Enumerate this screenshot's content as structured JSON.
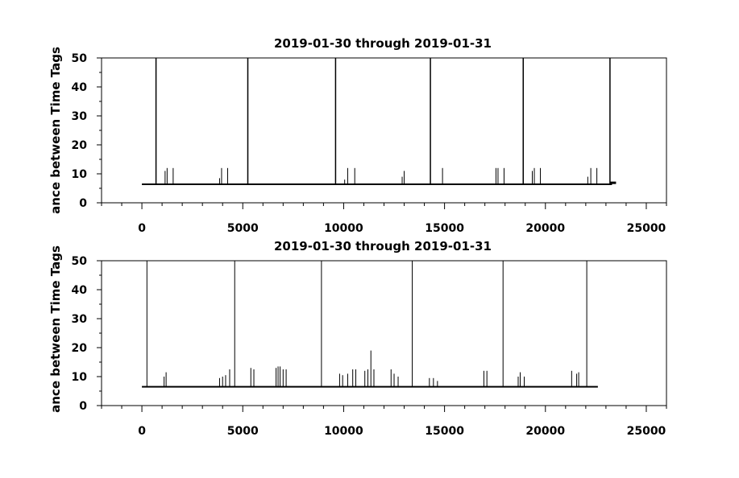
{
  "chart_data": [
    {
      "type": "line",
      "title": "2019-01-30 through 2019-01-31",
      "xlabel": "",
      "ylabel": "ance between Time Tags",
      "xlim": [
        -2000,
        26000
      ],
      "ylim": [
        0,
        50
      ],
      "xticks": [
        0,
        5000,
        10000,
        15000,
        20000,
        25000
      ],
      "yticks": [
        0,
        10,
        20,
        30,
        40,
        50
      ],
      "grid": false,
      "baseline": {
        "x_start": 0,
        "x_end": 23300,
        "y": 6.4
      },
      "tail": {
        "x_start": 23200,
        "x_end": 23500,
        "y": 6.9
      },
      "tall_spikes": [
        {
          "x": 700,
          "y": 50
        },
        {
          "x": 5250,
          "y": 50
        },
        {
          "x": 9600,
          "y": 50
        },
        {
          "x": 14300,
          "y": 50
        },
        {
          "x": 18900,
          "y": 50
        },
        {
          "x": 23200,
          "y": 50
        }
      ],
      "small_spikes": [
        {
          "x": 1150,
          "y": 11
        },
        {
          "x": 1250,
          "y": 12
        },
        {
          "x": 1550,
          "y": 12
        },
        {
          "x": 3850,
          "y": 8.5
        },
        {
          "x": 3950,
          "y": 12
        },
        {
          "x": 4250,
          "y": 12
        },
        {
          "x": 10050,
          "y": 8
        },
        {
          "x": 10200,
          "y": 12
        },
        {
          "x": 10550,
          "y": 12
        },
        {
          "x": 12900,
          "y": 9
        },
        {
          "x": 13000,
          "y": 11
        },
        {
          "x": 14900,
          "y": 12
        },
        {
          "x": 17550,
          "y": 12
        },
        {
          "x": 17650,
          "y": 12
        },
        {
          "x": 17950,
          "y": 12
        },
        {
          "x": 19350,
          "y": 11
        },
        {
          "x": 19450,
          "y": 12
        },
        {
          "x": 19750,
          "y": 12
        },
        {
          "x": 22100,
          "y": 9
        },
        {
          "x": 22250,
          "y": 12
        },
        {
          "x": 22550,
          "y": 12
        }
      ]
    },
    {
      "type": "line",
      "title": "2019-01-30 through 2019-01-31",
      "xlabel": "",
      "ylabel": "ance between Time Tags",
      "xlim": [
        -2000,
        26000
      ],
      "ylim": [
        0,
        50
      ],
      "xticks": [
        0,
        5000,
        10000,
        15000,
        20000,
        25000
      ],
      "yticks": [
        0,
        10,
        20,
        30,
        40,
        50
      ],
      "grid": false,
      "baseline": {
        "x_start": 0,
        "x_end": 22600,
        "y": 6.5
      },
      "tall_spikes": [
        {
          "x": 250,
          "y": 50
        },
        {
          "x": 4600,
          "y": 50
        },
        {
          "x": 8900,
          "y": 50
        },
        {
          "x": 13400,
          "y": 50
        },
        {
          "x": 17900,
          "y": 50
        },
        {
          "x": 22050,
          "y": 50
        }
      ],
      "small_spikes": [
        {
          "x": 1100,
          "y": 10
        },
        {
          "x": 1200,
          "y": 11.5
        },
        {
          "x": 3850,
          "y": 9.5
        },
        {
          "x": 4000,
          "y": 10
        },
        {
          "x": 4150,
          "y": 10.5
        },
        {
          "x": 4350,
          "y": 12.5
        },
        {
          "x": 5400,
          "y": 13
        },
        {
          "x": 5550,
          "y": 12.5
        },
        {
          "x": 6650,
          "y": 13
        },
        {
          "x": 6750,
          "y": 13.5
        },
        {
          "x": 6850,
          "y": 13.5
        },
        {
          "x": 7000,
          "y": 12.5
        },
        {
          "x": 7150,
          "y": 12.5
        },
        {
          "x": 9800,
          "y": 11
        },
        {
          "x": 9950,
          "y": 10.5
        },
        {
          "x": 10200,
          "y": 11
        },
        {
          "x": 10450,
          "y": 12.5
        },
        {
          "x": 10600,
          "y": 12.5
        },
        {
          "x": 11050,
          "y": 12
        },
        {
          "x": 11200,
          "y": 12.5
        },
        {
          "x": 11350,
          "y": 19
        },
        {
          "x": 11500,
          "y": 12.5
        },
        {
          "x": 12350,
          "y": 12.5
        },
        {
          "x": 12500,
          "y": 11
        },
        {
          "x": 12700,
          "y": 10
        },
        {
          "x": 14250,
          "y": 9.5
        },
        {
          "x": 14450,
          "y": 9.5
        },
        {
          "x": 14650,
          "y": 8.5
        },
        {
          "x": 16950,
          "y": 12
        },
        {
          "x": 17100,
          "y": 12
        },
        {
          "x": 18650,
          "y": 10
        },
        {
          "x": 18750,
          "y": 11.5
        },
        {
          "x": 18950,
          "y": 10
        },
        {
          "x": 21300,
          "y": 12
        },
        {
          "x": 21550,
          "y": 11
        },
        {
          "x": 21650,
          "y": 11.5
        }
      ]
    }
  ]
}
